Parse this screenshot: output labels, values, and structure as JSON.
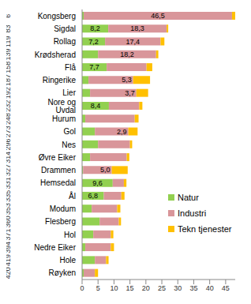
{
  "chart_data": {
    "type": "bar",
    "orientation": "horizontal",
    "stacked": true,
    "data_labels": true,
    "legend": "lower right",
    "grid": false,
    "categories": [
      "Kongsberg",
      "Sigdal",
      "Rollag",
      "Krødsherad",
      "Flå",
      "Ringerike",
      "Lier",
      "Nore og Uvdal",
      "Hurum",
      "Gol",
      "Nes",
      "Øvre Eiker",
      "Drammen",
      "Hemsedal",
      "Ål",
      "Modum",
      "Flesberg",
      "Hol",
      "Nedre Eiker",
      "Hole",
      "Røyken"
    ],
    "rank_labels": [
      6,
      83,
      119,
      139,
      158,
      187,
      192,
      232,
      248,
      273,
      296,
      314,
      327,
      331,
      335,
      353,
      360,
      371,
      394,
      419,
      420
    ],
    "xlim": [
      0,
      48
    ],
    "xticks": [
      0,
      5,
      10,
      15,
      20,
      25,
      30,
      35,
      40,
      45
    ],
    "series": [
      {
        "name": "Natur",
        "color": "#92d050",
        "values": [
          0.5,
          8.2,
          7.2,
          5,
          7.7,
          2,
          2.5,
          8.4,
          1,
          4,
          5,
          2.5,
          0.3,
          9.6,
          6.8,
          3,
          5.5,
          3.5,
          1,
          4,
          0.5
        ],
        "value_labels": [
          null,
          "8,2",
          "7,2",
          null,
          "7,7",
          null,
          null,
          "8,4",
          null,
          null,
          null,
          null,
          null,
          "9,6",
          "6,8",
          null,
          null,
          null,
          null,
          null,
          null
        ]
      },
      {
        "name": "Industri",
        "color": "#d9969a",
        "values": [
          46.5,
          18.3,
          17.4,
          18.2,
          12.5,
          14,
          14.5,
          9.5,
          15.5,
          10.5,
          10,
          11.5,
          9,
          3.5,
          5.5,
          8,
          6,
          5.5,
          8,
          3.5,
          3.5
        ],
        "value_labels": [
          "46,5",
          "18,3",
          "17,4",
          "18,2",
          null,
          null,
          null,
          null,
          null,
          null,
          null,
          null,
          null,
          null,
          null,
          null,
          null,
          null,
          null,
          null,
          null
        ]
      },
      {
        "name": "Tekn tjenester",
        "color": "#ffc000",
        "values": [
          1,
          0.5,
          1.2,
          0.7,
          1.8,
          5.3,
          3.7,
          1,
          1.2,
          2.9,
          0.7,
          0.8,
          5,
          0.8,
          1,
          1,
          0.7,
          0.8,
          1,
          0.8,
          1
        ],
        "value_labels": [
          null,
          null,
          null,
          null,
          null,
          "5,3",
          "3,7",
          null,
          null,
          "2,9",
          null,
          null,
          "5,0",
          null,
          null,
          null,
          null,
          null,
          null,
          null,
          null
        ]
      }
    ]
  }
}
